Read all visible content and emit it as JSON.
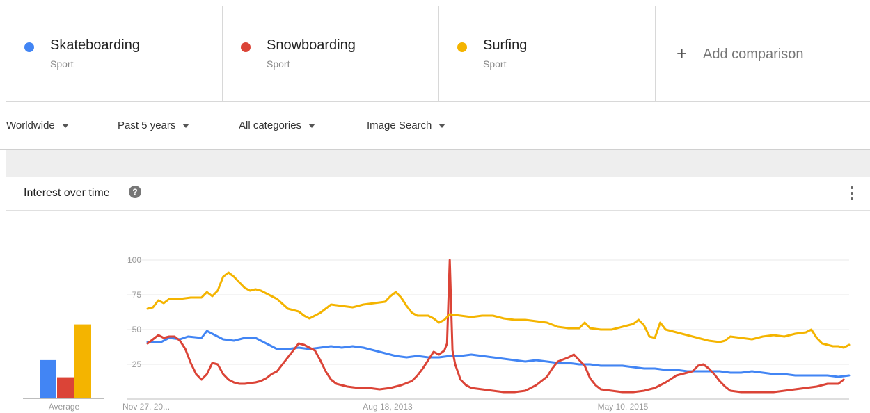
{
  "terms": [
    {
      "name": "Skateboarding",
      "kind": "Sport",
      "color": "#4285f4"
    },
    {
      "name": "Snowboarding",
      "kind": "Sport",
      "color": "#db4437"
    },
    {
      "name": "Surfing",
      "kind": "Sport",
      "color": "#f4b400"
    }
  ],
  "add_comparison": {
    "icon": "plus-icon",
    "label": "Add comparison"
  },
  "filters": [
    {
      "label": "Worldwide"
    },
    {
      "label": "Past 5 years"
    },
    {
      "label": "All categories"
    },
    {
      "label": "Image Search"
    }
  ],
  "section": {
    "title": "Interest over time",
    "help_icon": "?",
    "more_icon": "more-vert-icon"
  },
  "chart_data": {
    "type": "line",
    "y_ticks": [
      "100",
      "75",
      "50",
      "25"
    ],
    "ylim": [
      0,
      100
    ],
    "x_range": [
      0,
      260
    ],
    "x_tick_labels": [
      {
        "x": 0,
        "label": "Nov 27, 20..."
      },
      {
        "x": 87,
        "label": "Aug 18, 2013"
      },
      {
        "x": 174,
        "label": "May 10, 2015"
      }
    ],
    "grid": true,
    "series": [
      {
        "name": "Skateboarding",
        "color": "#4285f4",
        "points": [
          [
            0,
            41
          ],
          [
            5,
            41
          ],
          [
            8,
            44
          ],
          [
            12,
            43
          ],
          [
            15,
            45
          ],
          [
            20,
            44
          ],
          [
            22,
            49
          ],
          [
            25,
            46
          ],
          [
            28,
            43
          ],
          [
            32,
            42
          ],
          [
            36,
            44
          ],
          [
            40,
            44
          ],
          [
            44,
            40
          ],
          [
            48,
            36
          ],
          [
            52,
            36
          ],
          [
            56,
            37
          ],
          [
            60,
            36
          ],
          [
            64,
            37
          ],
          [
            68,
            38
          ],
          [
            72,
            37
          ],
          [
            76,
            38
          ],
          [
            80,
            37
          ],
          [
            84,
            35
          ],
          [
            88,
            33
          ],
          [
            92,
            31
          ],
          [
            96,
            30
          ],
          [
            100,
            31
          ],
          [
            104,
            30
          ],
          [
            108,
            30
          ],
          [
            112,
            31
          ],
          [
            116,
            31
          ],
          [
            120,
            32
          ],
          [
            124,
            31
          ],
          [
            128,
            30
          ],
          [
            132,
            29
          ],
          [
            136,
            28
          ],
          [
            140,
            27
          ],
          [
            144,
            28
          ],
          [
            148,
            27
          ],
          [
            152,
            26
          ],
          [
            156,
            26
          ],
          [
            160,
            25
          ],
          [
            164,
            25
          ],
          [
            168,
            24
          ],
          [
            172,
            24
          ],
          [
            176,
            24
          ],
          [
            180,
            23
          ],
          [
            184,
            22
          ],
          [
            188,
            22
          ],
          [
            192,
            21
          ],
          [
            196,
            21
          ],
          [
            200,
            20
          ],
          [
            204,
            20
          ],
          [
            208,
            20
          ],
          [
            212,
            20
          ],
          [
            216,
            19
          ],
          [
            220,
            19
          ],
          [
            224,
            20
          ],
          [
            228,
            19
          ],
          [
            232,
            18
          ],
          [
            236,
            18
          ],
          [
            240,
            17
          ],
          [
            244,
            17
          ],
          [
            248,
            17
          ],
          [
            252,
            17
          ],
          [
            256,
            16
          ],
          [
            260,
            17
          ]
        ]
      },
      {
        "name": "Snowboarding",
        "color": "#db4437",
        "points": [
          [
            0,
            40
          ],
          [
            2,
            43
          ],
          [
            4,
            46
          ],
          [
            6,
            44
          ],
          [
            8,
            45
          ],
          [
            10,
            45
          ],
          [
            12,
            42
          ],
          [
            14,
            36
          ],
          [
            16,
            26
          ],
          [
            18,
            18
          ],
          [
            20,
            14
          ],
          [
            22,
            18
          ],
          [
            24,
            26
          ],
          [
            26,
            25
          ],
          [
            28,
            18
          ],
          [
            30,
            14
          ],
          [
            32,
            12
          ],
          [
            34,
            11
          ],
          [
            36,
            11
          ],
          [
            40,
            12
          ],
          [
            42,
            13
          ],
          [
            44,
            15
          ],
          [
            46,
            18
          ],
          [
            48,
            20
          ],
          [
            50,
            25
          ],
          [
            52,
            30
          ],
          [
            54,
            35
          ],
          [
            56,
            40
          ],
          [
            58,
            39
          ],
          [
            60,
            37
          ],
          [
            62,
            35
          ],
          [
            64,
            28
          ],
          [
            66,
            20
          ],
          [
            68,
            14
          ],
          [
            70,
            11
          ],
          [
            74,
            9
          ],
          [
            78,
            8
          ],
          [
            82,
            8
          ],
          [
            86,
            7
          ],
          [
            90,
            8
          ],
          [
            94,
            10
          ],
          [
            98,
            13
          ],
          [
            100,
            17
          ],
          [
            102,
            22
          ],
          [
            104,
            28
          ],
          [
            106,
            34
          ],
          [
            108,
            32
          ],
          [
            110,
            35
          ],
          [
            111,
            40
          ],
          [
            112,
            100
          ],
          [
            113,
            35
          ],
          [
            114,
            25
          ],
          [
            116,
            14
          ],
          [
            118,
            10
          ],
          [
            120,
            8
          ],
          [
            124,
            7
          ],
          [
            128,
            6
          ],
          [
            132,
            5
          ],
          [
            136,
            5
          ],
          [
            140,
            6
          ],
          [
            144,
            10
          ],
          [
            148,
            16
          ],
          [
            150,
            22
          ],
          [
            152,
            27
          ],
          [
            156,
            30
          ],
          [
            158,
            32
          ],
          [
            160,
            28
          ],
          [
            162,
            24
          ],
          [
            164,
            15
          ],
          [
            166,
            10
          ],
          [
            168,
            7
          ],
          [
            172,
            6
          ],
          [
            176,
            5
          ],
          [
            180,
            5
          ],
          [
            184,
            6
          ],
          [
            188,
            8
          ],
          [
            192,
            12
          ],
          [
            196,
            17
          ],
          [
            200,
            19
          ],
          [
            202,
            20
          ],
          [
            204,
            24
          ],
          [
            206,
            25
          ],
          [
            208,
            22
          ],
          [
            210,
            18
          ],
          [
            212,
            13
          ],
          [
            214,
            9
          ],
          [
            216,
            6
          ],
          [
            220,
            5
          ],
          [
            224,
            5
          ],
          [
            228,
            5
          ],
          [
            232,
            5
          ],
          [
            236,
            6
          ],
          [
            240,
            7
          ],
          [
            244,
            8
          ],
          [
            248,
            9
          ],
          [
            250,
            10
          ],
          [
            252,
            11
          ],
          [
            256,
            11
          ],
          [
            258,
            14
          ]
        ]
      },
      {
        "name": "Surfing",
        "color": "#f4b400",
        "points": [
          [
            0,
            65
          ],
          [
            2,
            66
          ],
          [
            4,
            71
          ],
          [
            6,
            69
          ],
          [
            8,
            72
          ],
          [
            12,
            72
          ],
          [
            16,
            73
          ],
          [
            20,
            73
          ],
          [
            22,
            77
          ],
          [
            24,
            74
          ],
          [
            26,
            78
          ],
          [
            28,
            88
          ],
          [
            30,
            91
          ],
          [
            32,
            88
          ],
          [
            34,
            84
          ],
          [
            36,
            80
          ],
          [
            38,
            78
          ],
          [
            40,
            79
          ],
          [
            42,
            78
          ],
          [
            44,
            76
          ],
          [
            46,
            74
          ],
          [
            48,
            72
          ],
          [
            52,
            65
          ],
          [
            56,
            63
          ],
          [
            58,
            60
          ],
          [
            60,
            58
          ],
          [
            64,
            62
          ],
          [
            66,
            65
          ],
          [
            68,
            68
          ],
          [
            72,
            67
          ],
          [
            76,
            66
          ],
          [
            80,
            68
          ],
          [
            84,
            69
          ],
          [
            88,
            70
          ],
          [
            90,
            74
          ],
          [
            92,
            77
          ],
          [
            94,
            73
          ],
          [
            96,
            67
          ],
          [
            98,
            62
          ],
          [
            100,
            60
          ],
          [
            104,
            60
          ],
          [
            106,
            58
          ],
          [
            108,
            55
          ],
          [
            110,
            57
          ],
          [
            112,
            61
          ],
          [
            116,
            60
          ],
          [
            120,
            59
          ],
          [
            124,
            60
          ],
          [
            128,
            60
          ],
          [
            132,
            58
          ],
          [
            136,
            57
          ],
          [
            140,
            57
          ],
          [
            144,
            56
          ],
          [
            148,
            55
          ],
          [
            152,
            52
          ],
          [
            156,
            51
          ],
          [
            160,
            51
          ],
          [
            162,
            55
          ],
          [
            164,
            51
          ],
          [
            168,
            50
          ],
          [
            172,
            50
          ],
          [
            176,
            52
          ],
          [
            180,
            54
          ],
          [
            182,
            57
          ],
          [
            184,
            53
          ],
          [
            186,
            45
          ],
          [
            188,
            44
          ],
          [
            190,
            55
          ],
          [
            192,
            50
          ],
          [
            196,
            48
          ],
          [
            200,
            46
          ],
          [
            204,
            44
          ],
          [
            208,
            42
          ],
          [
            212,
            41
          ],
          [
            214,
            42
          ],
          [
            216,
            45
          ],
          [
            220,
            44
          ],
          [
            224,
            43
          ],
          [
            228,
            45
          ],
          [
            232,
            46
          ],
          [
            236,
            45
          ],
          [
            240,
            47
          ],
          [
            244,
            48
          ],
          [
            246,
            50
          ],
          [
            248,
            44
          ],
          [
            250,
            40
          ],
          [
            252,
            39
          ],
          [
            254,
            38
          ],
          [
            256,
            38
          ],
          [
            258,
            37
          ],
          [
            260,
            39
          ]
        ]
      }
    ],
    "average": {
      "label": "Average",
      "values": [
        29,
        16,
        56
      ]
    }
  }
}
